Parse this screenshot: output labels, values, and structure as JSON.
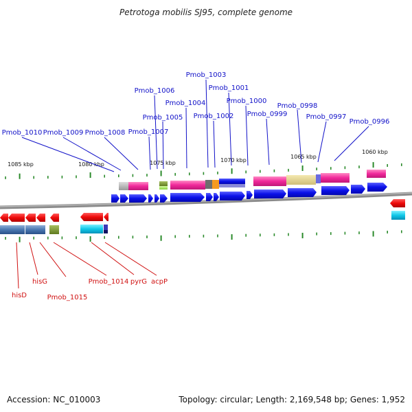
{
  "title": "Petrotoga mobilis SJ95, complete genome",
  "accession": "Accession: NC_010003",
  "summary": "Topology: circular; Length: 2,169,548 bp; Genes: 1,952",
  "colors": {
    "forward_gene": "#0a10e8",
    "reverse_gene": "#ee0a0a",
    "top_label": "#1010c8",
    "bottom_label": "#d01010",
    "tick": "#2a8a2a",
    "backbone": "#7a7a7a"
  },
  "ticks": [
    {
      "label": "1085 kbp"
    },
    {
      "label": "1080 kbp"
    },
    {
      "label": "1075 kbp"
    },
    {
      "label": "1070 kbp"
    },
    {
      "label": "1065 kbp"
    },
    {
      "label": "1060 kbp"
    }
  ],
  "top_genes": [
    {
      "label": "Pmob_1010"
    },
    {
      "label": "Pmob_1009"
    },
    {
      "label": "Pmob_1008"
    },
    {
      "label": "Pmob_1007"
    },
    {
      "label": "Pmob_1006"
    },
    {
      "label": "Pmob_1005"
    },
    {
      "label": "Pmob_1004"
    },
    {
      "label": "Pmob_1003"
    },
    {
      "label": "Pmob_1002"
    },
    {
      "label": "Pmob_1001"
    },
    {
      "label": "Pmob_1000"
    },
    {
      "label": "Pmob_0999"
    },
    {
      "label": "Pmob_0998"
    },
    {
      "label": "Pmob_0997"
    },
    {
      "label": "Pmob_0996"
    }
  ],
  "bottom_genes": [
    {
      "label": "hisD"
    },
    {
      "label": "hisG"
    },
    {
      "label": "Pmob_1015"
    },
    {
      "label": "Pmob_1014"
    },
    {
      "label": "pyrG"
    },
    {
      "label": "acpP"
    }
  ]
}
